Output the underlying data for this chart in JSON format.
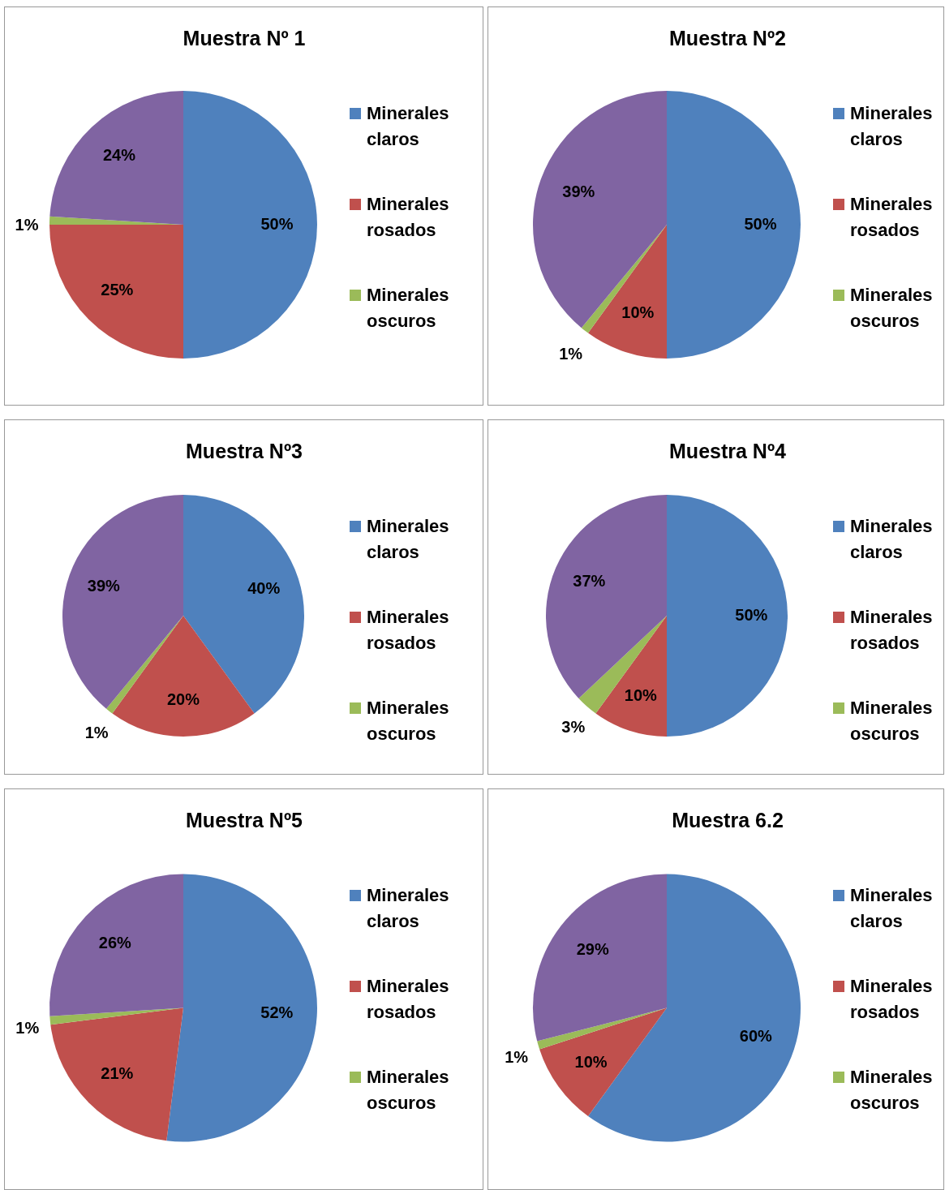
{
  "chart_data": [
    {
      "type": "pie",
      "title": "Muestra Nº 1",
      "categories": [
        "Minerales claros",
        "Minerales rosados",
        "Minerales oscuros",
        null
      ],
      "values": [
        50,
        25,
        1,
        24
      ],
      "value_labels": [
        "50%",
        "25%",
        "1%",
        "24%"
      ],
      "colors": [
        "#4f81bd",
        "#c0504d",
        "#9bbb59",
        "#8064a2"
      ],
      "legend": "right"
    },
    {
      "type": "pie",
      "title": "Muestra Nº2",
      "categories": [
        "Minerales claros",
        "Minerales rosados",
        "Minerales oscuros",
        null
      ],
      "values": [
        50,
        10,
        1,
        39
      ],
      "value_labels": [
        "50%",
        "10%",
        "1%",
        "39%"
      ],
      "colors": [
        "#4f81bd",
        "#c0504d",
        "#9bbb59",
        "#8064a2"
      ],
      "legend": "right"
    },
    {
      "type": "pie",
      "title": "Muestra Nº3",
      "categories": [
        "Minerales claros",
        "Minerales rosados",
        "Minerales oscuros",
        null
      ],
      "values": [
        40,
        20,
        1,
        39
      ],
      "value_labels": [
        "40%",
        "20%",
        "1%",
        "39%"
      ],
      "colors": [
        "#4f81bd",
        "#c0504d",
        "#9bbb59",
        "#8064a2"
      ],
      "legend": "right"
    },
    {
      "type": "pie",
      "title": "Muestra Nº4",
      "categories": [
        "Minerales claros",
        "Minerales rosados",
        "Minerales oscuros",
        null
      ],
      "values": [
        50,
        10,
        3,
        37
      ],
      "value_labels": [
        "50%",
        "10%",
        "3%",
        "37%"
      ],
      "colors": [
        "#4f81bd",
        "#c0504d",
        "#9bbb59",
        "#8064a2"
      ],
      "legend": "right"
    },
    {
      "type": "pie",
      "title": "Muestra Nº5",
      "categories": [
        "Minerales claros",
        "Minerales rosados",
        "Minerales oscuros",
        null
      ],
      "values": [
        52,
        21,
        1,
        26
      ],
      "value_labels": [
        "52%",
        "21%",
        "1%",
        "26%"
      ],
      "colors": [
        "#4f81bd",
        "#c0504d",
        "#9bbb59",
        "#8064a2"
      ],
      "legend": "right"
    },
    {
      "type": "pie",
      "title": "Muestra 6.2",
      "categories": [
        "Minerales claros",
        "Minerales rosados",
        "Minerales oscuros",
        null
      ],
      "values": [
        60,
        10,
        1,
        29
      ],
      "value_labels": [
        "60%",
        "10%",
        "1%",
        "29%"
      ],
      "colors": [
        "#4f81bd",
        "#c0504d",
        "#9bbb59",
        "#8064a2"
      ],
      "legend": "right"
    }
  ]
}
